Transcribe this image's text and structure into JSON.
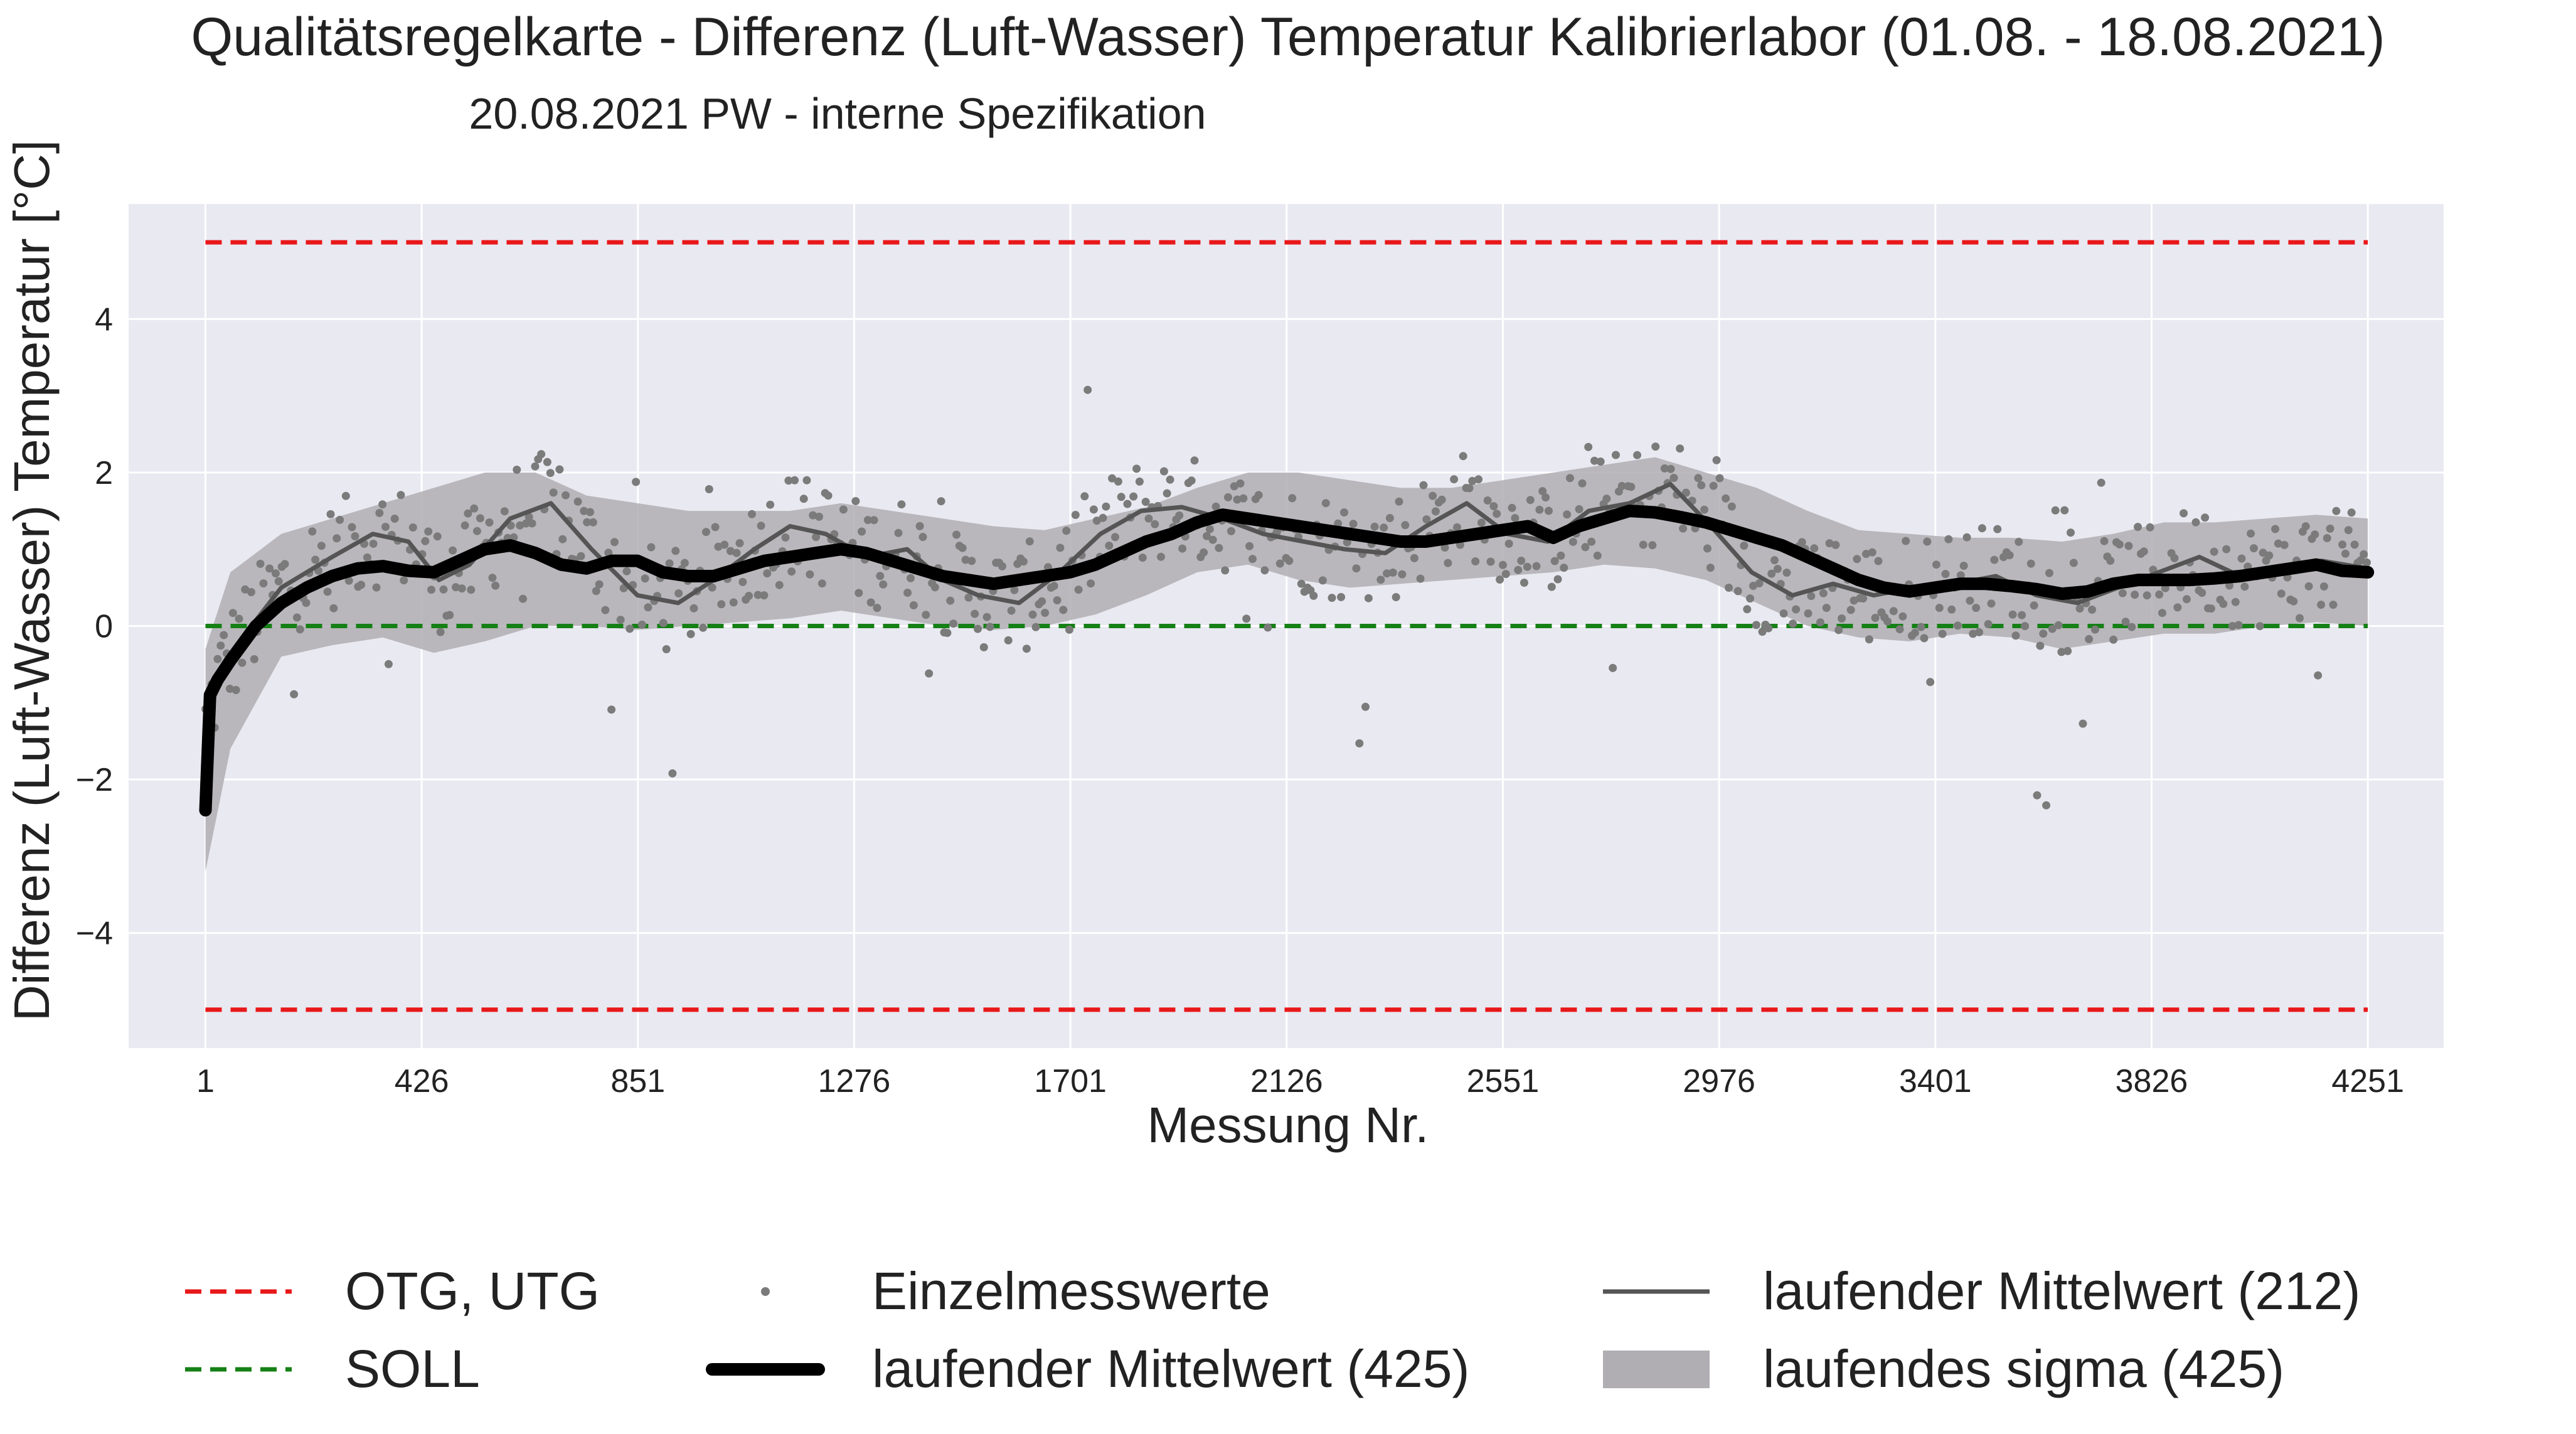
{
  "chart_data": {
    "type": "line",
    "title": "Qualitätsregelkarte - Differenz (Luft-Wasser) Temperatur Kalibrierlabor (01.08. - 18.08.2021)",
    "subtitle": "20.08.2021 PW - interne Spezifikation",
    "xlabel": "Messung Nr.",
    "ylabel": "Differenz (Luft-Wasser) Temperatur [°C]",
    "xlim": [
      -150,
      4400
    ],
    "ylim": [
      -5.5,
      5.5
    ],
    "x_ticks": [
      1,
      426,
      851,
      1276,
      1701,
      2126,
      2551,
      2976,
      3401,
      3826,
      4251
    ],
    "x_tick_labels": [
      "1",
      "426",
      "851",
      "1276",
      "1701",
      "2126",
      "2551",
      "2976",
      "3401",
      "3826",
      "4251"
    ],
    "y_ticks": [
      -4,
      -2,
      0,
      2,
      4
    ],
    "y_tick_labels": [
      "−4",
      "−2",
      "0",
      "2",
      "4"
    ],
    "grid": true,
    "legend_position": "bottom",
    "limits": {
      "otg": 5,
      "utg": -5,
      "soll": 0
    },
    "series": [
      {
        "name": "laufender Mittelwert (425)",
        "color": "#000000",
        "x": [
          1,
          10,
          25,
          50,
          100,
          150,
          200,
          250,
          300,
          350,
          400,
          450,
          500,
          550,
          600,
          650,
          700,
          750,
          800,
          850,
          900,
          950,
          1000,
          1050,
          1100,
          1150,
          1200,
          1250,
          1300,
          1350,
          1400,
          1450,
          1500,
          1550,
          1600,
          1650,
          1700,
          1750,
          1800,
          1850,
          1900,
          1950,
          2000,
          2050,
          2100,
          2150,
          2200,
          2250,
          2300,
          2350,
          2400,
          2450,
          2500,
          2550,
          2600,
          2650,
          2700,
          2750,
          2800,
          2850,
          2900,
          2950,
          3000,
          3050,
          3100,
          3150,
          3200,
          3250,
          3300,
          3350,
          3400,
          3450,
          3500,
          3550,
          3600,
          3650,
          3700,
          3750,
          3800,
          3850,
          3900,
          3950,
          4000,
          4050,
          4100,
          4150,
          4200,
          4251
        ],
        "y": [
          -2.4,
          -0.9,
          -0.7,
          -0.45,
          0.0,
          0.3,
          0.5,
          0.65,
          0.75,
          0.78,
          0.72,
          0.7,
          0.85,
          1.0,
          1.05,
          0.95,
          0.8,
          0.75,
          0.85,
          0.85,
          0.7,
          0.65,
          0.65,
          0.75,
          0.85,
          0.9,
          0.95,
          1.0,
          0.95,
          0.85,
          0.75,
          0.65,
          0.6,
          0.55,
          0.6,
          0.65,
          0.7,
          0.8,
          0.95,
          1.1,
          1.2,
          1.35,
          1.45,
          1.4,
          1.35,
          1.3,
          1.25,
          1.2,
          1.15,
          1.1,
          1.1,
          1.15,
          1.2,
          1.25,
          1.3,
          1.15,
          1.3,
          1.4,
          1.5,
          1.48,
          1.42,
          1.35,
          1.25,
          1.15,
          1.05,
          0.9,
          0.75,
          0.6,
          0.5,
          0.45,
          0.5,
          0.55,
          0.55,
          0.52,
          0.48,
          0.42,
          0.45,
          0.55,
          0.6,
          0.6,
          0.6,
          0.62,
          0.65,
          0.7,
          0.75,
          0.8,
          0.72,
          0.7
        ]
      },
      {
        "name": "laufender Mittelwert (212)",
        "color": "#555555",
        "x": [
          1,
          30,
          80,
          150,
          250,
          330,
          400,
          460,
          520,
          600,
          680,
          760,
          850,
          930,
          1000,
          1080,
          1150,
          1220,
          1300,
          1380,
          1450,
          1520,
          1600,
          1680,
          1760,
          1840,
          1920,
          2000,
          2080,
          2160,
          2240,
          2320,
          2400,
          2480,
          2560,
          2640,
          2720,
          2800,
          2880,
          2960,
          3040,
          3120,
          3200,
          3280,
          3360,
          3440,
          3520,
          3600,
          3680,
          3760,
          3840,
          3920,
          4000,
          4080,
          4160,
          4251
        ],
        "y": [
          -1.3,
          -0.6,
          -0.1,
          0.5,
          0.9,
          1.2,
          1.1,
          0.6,
          0.8,
          1.4,
          1.6,
          1.0,
          0.4,
          0.3,
          0.6,
          1.0,
          1.3,
          1.2,
          0.9,
          1.0,
          0.6,
          0.4,
          0.3,
          0.7,
          1.2,
          1.5,
          1.55,
          1.4,
          1.2,
          1.1,
          1.0,
          0.95,
          1.3,
          1.6,
          1.2,
          1.1,
          1.5,
          1.6,
          1.85,
          1.3,
          0.7,
          0.4,
          0.55,
          0.4,
          0.5,
          0.55,
          0.65,
          0.4,
          0.3,
          0.5,
          0.7,
          0.9,
          0.65,
          0.7,
          0.85,
          0.75
        ]
      }
    ],
    "band": {
      "name": "laufendes sigma (425)",
      "color": "#b0aeb3",
      "x": [
        1,
        50,
        150,
        250,
        350,
        450,
        550,
        650,
        750,
        850,
        950,
        1050,
        1150,
        1250,
        1350,
        1450,
        1550,
        1650,
        1750,
        1850,
        1950,
        2050,
        2150,
        2250,
        2350,
        2450,
        2550,
        2650,
        2750,
        2850,
        2950,
        3050,
        3150,
        3250,
        3350,
        3450,
        3550,
        3650,
        3750,
        3850,
        3950,
        4050,
        4150,
        4251
      ],
      "upper": [
        -0.3,
        0.7,
        1.2,
        1.4,
        1.6,
        1.8,
        2.0,
        2.0,
        1.7,
        1.6,
        1.5,
        1.5,
        1.5,
        1.6,
        1.5,
        1.4,
        1.3,
        1.25,
        1.4,
        1.55,
        1.8,
        2.0,
        2.0,
        1.9,
        1.8,
        1.8,
        1.9,
        2.0,
        2.1,
        2.2,
        2.0,
        1.8,
        1.5,
        1.25,
        1.2,
        1.15,
        1.15,
        1.1,
        1.2,
        1.35,
        1.35,
        1.4,
        1.45,
        1.4
      ],
      "lower": [
        -3.2,
        -1.6,
        -0.4,
        -0.25,
        -0.15,
        -0.35,
        -0.2,
        0.0,
        0.0,
        -0.05,
        0.0,
        0.05,
        0.1,
        0.2,
        0.1,
        0.0,
        -0.05,
        0.0,
        0.15,
        0.4,
        0.7,
        0.8,
        0.6,
        0.5,
        0.55,
        0.6,
        0.65,
        0.7,
        0.8,
        0.75,
        0.6,
        0.3,
        0.0,
        -0.15,
        -0.2,
        -0.1,
        -0.15,
        -0.3,
        -0.2,
        -0.1,
        -0.1,
        0.0,
        0.05,
        0.0
      ]
    },
    "scatter_note_values": {
      "name": "Einzelmesswerte",
      "color": "#7b7b7b"
    }
  },
  "legend": [
    {
      "label": "OTG, UTG",
      "style": "dashed",
      "color": "#e8181a"
    },
    {
      "label": "SOLL",
      "style": "dashed",
      "color": "#158015"
    },
    {
      "label": "Einzelmesswerte",
      "style": "dot",
      "color": "#7b7b7b"
    },
    {
      "label": "laufender Mittelwert (425)",
      "style": "thick",
      "color": "#000000"
    },
    {
      "label": "laufender Mittelwert (212)",
      "style": "thin",
      "color": "#555555"
    },
    {
      "label": "laufendes sigma (425)",
      "style": "band",
      "color": "#b0aeb3"
    }
  ],
  "colors": {
    "plot_background": "#e9e9f1",
    "otg_utg": "#e8181a",
    "soll": "#158015"
  }
}
